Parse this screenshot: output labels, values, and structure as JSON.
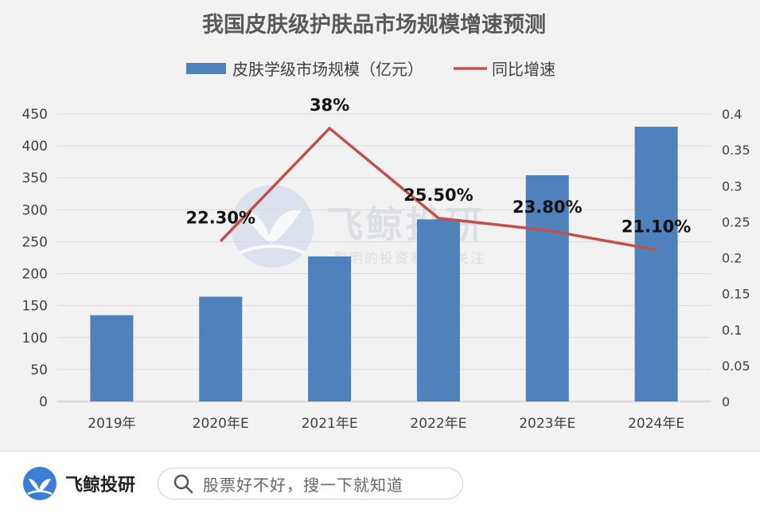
{
  "chart_data": {
    "type": "bar+line",
    "title": "我国皮肤级护肤品市场规模增速预测",
    "categories": [
      "2019年",
      "2020年E",
      "2021年E",
      "2022年E",
      "2023年E",
      "2024年E"
    ],
    "series": [
      {
        "name": "皮肤学级市场规模（亿元）",
        "type": "bar",
        "axis": "left",
        "color": "#4f81bd",
        "values": [
          135,
          164,
          227,
          285,
          354,
          430
        ]
      },
      {
        "name": "同比增速",
        "type": "line",
        "axis": "right",
        "color": "#c0504d",
        "values": [
          null,
          0.223,
          0.38,
          0.255,
          0.238,
          0.211
        ],
        "labels": [
          "",
          "22.30%",
          "38%",
          "25.50%",
          "23.80%",
          "21.10%"
        ]
      }
    ],
    "y_left": {
      "min": 0,
      "max": 450,
      "ticks": [
        "0",
        "50",
        "100",
        "150",
        "200",
        "250",
        "300",
        "350",
        "400",
        "450"
      ]
    },
    "y_right": {
      "min": 0,
      "max": 0.4,
      "ticks": [
        "0",
        "0.05",
        "0.1",
        "0.15",
        "0.2",
        "0.25",
        "0.3",
        "0.35",
        "0.4"
      ]
    },
    "grid": true,
    "legend": "top"
  },
  "watermark": {
    "name": "飞鲸投研",
    "slogan": "聪明的投资者都在关注"
  },
  "footer": {
    "brand": "飞鲸投研",
    "search_placeholder": "股票好不好，搜一下就知道",
    "icons": {
      "logo": "whale-tail-logo",
      "search": "search-icon"
    }
  }
}
